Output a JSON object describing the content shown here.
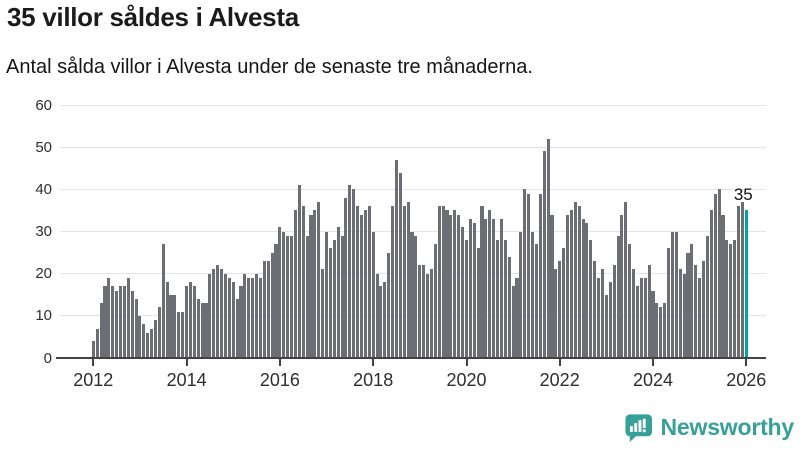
{
  "header": {
    "title": "35 villor såldes i Alvesta",
    "subtitle": "Antal sålda villor i Alvesta under de senaste tre månaderna."
  },
  "chart_data": {
    "type": "bar",
    "title": "35 villor såldes i Alvesta",
    "subtitle": "Antal sålda villor i Alvesta under de senaste tre månaderna.",
    "x_unit": "month",
    "x_start": "2012-01",
    "x_end": "2026-01",
    "xlabel": "",
    "ylabel": "",
    "xtick_years": [
      2012,
      2014,
      2016,
      2018,
      2020,
      2022,
      2024,
      2026
    ],
    "ylim": [
      0,
      60
    ],
    "yticks": [
      0,
      10,
      20,
      30,
      40,
      50,
      60
    ],
    "grid": "horizontal",
    "bar_color": "#6d6d74",
    "values": [
      4,
      7,
      13,
      17,
      19,
      17,
      16,
      17,
      17,
      19,
      16,
      14,
      10,
      8,
      6,
      7,
      9,
      12,
      27,
      18,
      15,
      15,
      11,
      11,
      17,
      18,
      17,
      14,
      13,
      13,
      20,
      21,
      22,
      21,
      20,
      19,
      18,
      14,
      17,
      20,
      19,
      19,
      20,
      19,
      23,
      23,
      25,
      27,
      31,
      30,
      29,
      29,
      35,
      41,
      36,
      29,
      34,
      35,
      37,
      21,
      30,
      26,
      28,
      31,
      29,
      38,
      41,
      40,
      36,
      34,
      35,
      36,
      30,
      20,
      17,
      18,
      25,
      36,
      47,
      44,
      36,
      37,
      30,
      29,
      22,
      22,
      20,
      21,
      27,
      36,
      36,
      35,
      34,
      35,
      34,
      31,
      28,
      33,
      32,
      26,
      36,
      33,
      35,
      33,
      28,
      33,
      28,
      24,
      17,
      19,
      30,
      40,
      39,
      30,
      27,
      39,
      49,
      52,
      34,
      21,
      23,
      26,
      34,
      35,
      37,
      36,
      33,
      32,
      28,
      23,
      19,
      21,
      15,
      18,
      22,
      29,
      34,
      37,
      27,
      21,
      17,
      19,
      19,
      22,
      16,
      13,
      12,
      13,
      26,
      30,
      30,
      21,
      20,
      25,
      27,
      22,
      19,
      23,
      29,
      35,
      39,
      40,
      34,
      28,
      27,
      28,
      36,
      37,
      35
    ],
    "highlight": {
      "index_from_end": 0,
      "value": 35,
      "label": "35",
      "color": "#00a2a2"
    }
  },
  "footer": {
    "brand": "Newsworthy",
    "brand_color": "#38a098",
    "icon": "newsworthy-bubble-barchart-icon"
  }
}
